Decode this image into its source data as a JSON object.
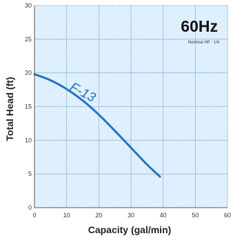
{
  "chart_data": {
    "type": "line",
    "frequency_label": "60Hz",
    "nominal_hp_label": "Nominal HP : 1/4",
    "xlabel": "Capacity  (gal/min)",
    "ylabel": "Total  Head  (ft)",
    "xlim": [
      0,
      60
    ],
    "ylim": [
      0,
      30
    ],
    "x_ticks": [
      0,
      10,
      20,
      30,
      40,
      50,
      60
    ],
    "y_ticks": [
      0,
      5,
      10,
      15,
      20,
      25,
      30
    ],
    "x_tick_labels": [
      "0",
      "10",
      "20",
      "30",
      "40",
      "50",
      "60"
    ],
    "y_tick_labels": [
      "0",
      "5",
      "10",
      "15",
      "20",
      "25",
      "30"
    ],
    "grid": true,
    "background_color": "#dcefff",
    "series": [
      {
        "name": "F-13",
        "color": "#1e73c8",
        "x": [
          0,
          5,
          10,
          15,
          20,
          25,
          30,
          35,
          39
        ],
        "y": [
          19.8,
          18.9,
          17.6,
          15.9,
          13.8,
          11.4,
          8.9,
          6.4,
          4.6
        ]
      }
    ]
  }
}
